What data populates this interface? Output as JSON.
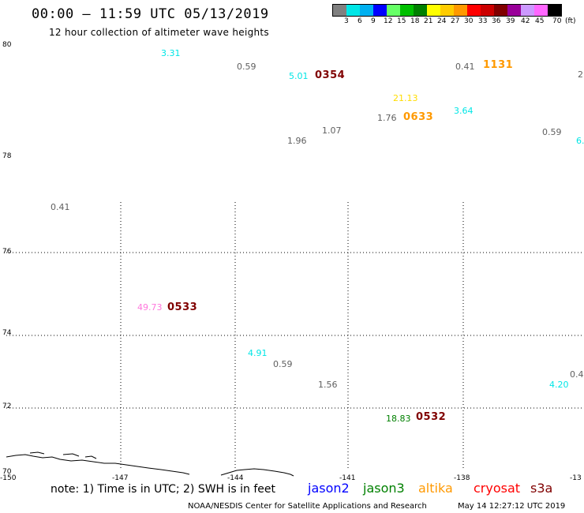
{
  "title": "00:00 – 11:59 UTC 05/13/2019",
  "subtitle": "12 hour collection of altimeter wave heights",
  "legend": {
    "swatches": [
      {
        "color": "#808080"
      },
      {
        "color": "#00e6e6"
      },
      {
        "color": "#00b0f0"
      },
      {
        "color": "#0000ff"
      },
      {
        "color": "#66ff66"
      },
      {
        "color": "#00c000"
      },
      {
        "color": "#008000"
      },
      {
        "color": "#ffff00"
      },
      {
        "color": "#ffcc00"
      },
      {
        "color": "#ff9900"
      },
      {
        "color": "#ff0000"
      },
      {
        "color": "#cc0000"
      },
      {
        "color": "#800000"
      },
      {
        "color": "#990099"
      },
      {
        "color": "#cc99ff"
      },
      {
        "color": "#ff66ff"
      },
      {
        "color": "#000000"
      }
    ],
    "labels": [
      "3",
      "6",
      "9",
      "12",
      "15",
      "18",
      "21",
      "24",
      "27",
      "30",
      "33",
      "36",
      "39",
      "42",
      "45",
      "70"
    ],
    "unit": "(ft)"
  },
  "map": {
    "lat_labels": [
      "80",
      "78",
      "76",
      "74",
      "72",
      "70"
    ],
    "lon_labels": [
      "-150",
      "-147",
      "-144",
      "-141",
      "-138",
      "-13"
    ],
    "wave_heights": [
      {
        "text": "3.31",
        "color": "#00e6e6"
      },
      {
        "text": "0.59",
        "color": "#606060"
      },
      {
        "text": "5.01",
        "color": "#00e6e6"
      },
      {
        "text": "0.41",
        "color": "#606060"
      },
      {
        "text": "2.",
        "color": "#606060"
      },
      {
        "text": "21.13",
        "color": "#ffdd00"
      },
      {
        "text": "1.76",
        "color": "#606060"
      },
      {
        "text": "3.64",
        "color": "#00e6e6"
      },
      {
        "text": "1.07",
        "color": "#606060"
      },
      {
        "text": "1.96",
        "color": "#606060"
      },
      {
        "text": "0.59",
        "color": "#606060"
      },
      {
        "text": "6.",
        "color": "#00e6e6"
      },
      {
        "text": "0.41",
        "color": "#606060"
      },
      {
        "text": "49.73",
        "color": "#ff77dd"
      },
      {
        "text": "4.91",
        "color": "#00e6e6"
      },
      {
        "text": "0.59",
        "color": "#606060"
      },
      {
        "text": "1.56",
        "color": "#606060"
      },
      {
        "text": "0.4",
        "color": "#606060"
      },
      {
        "text": "4.20",
        "color": "#00e6e6"
      },
      {
        "text": "18.83",
        "color": "#008000"
      }
    ],
    "pass_times": [
      {
        "text": "0354",
        "color": "#800000"
      },
      {
        "text": "1131",
        "color": "#ff9900"
      },
      {
        "text": "0633",
        "color": "#ff9900"
      },
      {
        "text": "0533",
        "color": "#800000"
      },
      {
        "text": "0532",
        "color": "#800000"
      }
    ]
  },
  "note": "note: 1) Time is in UTC; 2) SWH is in feet",
  "satellites": [
    {
      "name": "jason2",
      "color": "#0000ff"
    },
    {
      "name": "jason3",
      "color": "#008000"
    },
    {
      "name": "altika",
      "color": "#ff9900"
    },
    {
      "name": "cryosat",
      "color": "#ff0000"
    },
    {
      "name": "s3a",
      "color": "#800000"
    }
  ],
  "credit": "NOAA/NESDIS Center for Satellite Applications and Research",
  "timestamp": "May 14 12:27:12 UTC 2019"
}
